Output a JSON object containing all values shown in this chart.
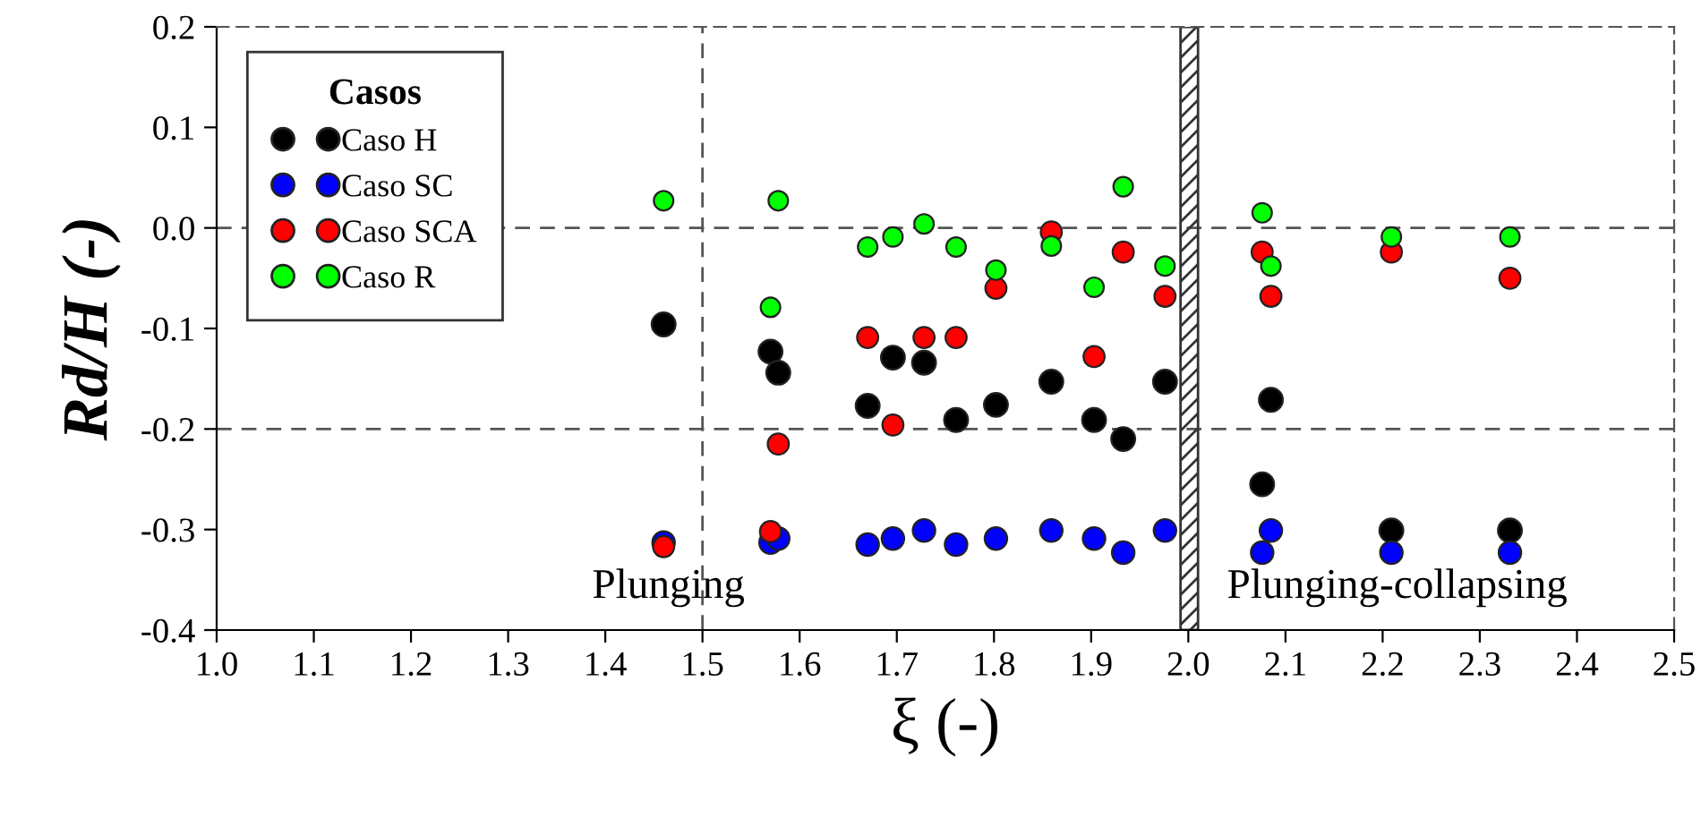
{
  "chart_data": {
    "type": "scatter",
    "xlabel": "ξ (-)",
    "ylabel": "Rd/H (-)",
    "legend_title": "Casos",
    "legend": "top left",
    "marker": "circle",
    "xlim": [
      1.0,
      2.5
    ],
    "ylim": [
      -0.4,
      0.2
    ],
    "xticks": [
      {
        "value": 1.0,
        "label": "1.0"
      },
      {
        "value": 1.1,
        "label": "1.1"
      },
      {
        "value": 1.2,
        "label": "1.2"
      },
      {
        "value": 1.3,
        "label": "1.3"
      },
      {
        "value": 1.4,
        "label": "1.4"
      },
      {
        "value": 1.5,
        "label": "1.5"
      },
      {
        "value": 1.6,
        "label": "1.6"
      },
      {
        "value": 1.7,
        "label": "1.7"
      },
      {
        "value": 1.8,
        "label": "1.8"
      },
      {
        "value": 1.9,
        "label": "1.9"
      },
      {
        "value": 2.0,
        "label": "2.0"
      },
      {
        "value": 2.1,
        "label": "2.1"
      },
      {
        "value": 2.2,
        "label": "2.2"
      },
      {
        "value": 2.3,
        "label": "2.3"
      },
      {
        "value": 2.4,
        "label": "2.4"
      },
      {
        "value": 2.5,
        "label": "2.5"
      }
    ],
    "yticks": [
      {
        "value": -0.4,
        "label": "-0.4"
      },
      {
        "value": -0.3,
        "label": "-0.3"
      },
      {
        "value": -0.2,
        "label": "-0.2"
      },
      {
        "value": -0.1,
        "label": "-0.1"
      },
      {
        "value": 0.0,
        "label": "0.0"
      },
      {
        "value": 0.1,
        "label": "0.1"
      },
      {
        "value": 0.2,
        "label": "0.2"
      }
    ],
    "x": [
      1.46,
      1.57,
      1.578,
      1.67,
      1.696,
      1.728,
      1.761,
      1.802,
      1.859,
      1.903,
      1.933,
      1.976,
      2.076,
      2.085,
      2.209,
      2.331
    ],
    "series": [
      {
        "name": "Caso H",
        "color": "#000000",
        "values": [
          -0.096,
          -0.123,
          -0.144,
          -0.177,
          -0.129,
          -0.134,
          -0.191,
          -0.176,
          -0.153,
          -0.191,
          -0.21,
          -0.153,
          -0.255,
          -0.171,
          -0.301,
          -0.301
        ]
      },
      {
        "name": "Caso SC",
        "color": "#0000ff",
        "values": [
          -0.313,
          -0.313,
          -0.309,
          -0.315,
          -0.309,
          -0.301,
          -0.315,
          -0.309,
          -0.301,
          -0.309,
          -0.323,
          -0.301,
          -0.323,
          -0.301,
          -0.323,
          -0.323
        ]
      },
      {
        "name": "Caso SCA",
        "color": "#ff0000",
        "values": [
          -0.317,
          -0.302,
          -0.215,
          -0.109,
          -0.196,
          -0.109,
          -0.109,
          -0.06,
          -0.004,
          -0.128,
          -0.024,
          -0.068,
          -0.024,
          -0.068,
          -0.024,
          -0.05
        ]
      },
      {
        "name": "Caso R",
        "color": "#00ff00",
        "values": [
          0.027,
          -0.079,
          0.027,
          -0.019,
          -0.009,
          0.004,
          -0.019,
          -0.042,
          -0.018,
          -0.059,
          0.041,
          -0.038,
          0.015,
          -0.038,
          -0.009,
          -0.009
        ]
      }
    ],
    "ref_lines": [
      {
        "axis": "x",
        "value": 1.5,
        "line_style": "dashed",
        "color": "#555555"
      },
      {
        "axis": "y",
        "value": 0.0,
        "line_style": "dashed",
        "color": "#555555"
      },
      {
        "axis": "y",
        "value": -0.2,
        "line_style": "dashed",
        "color": "#555555"
      }
    ],
    "bands": [
      {
        "axis": "x",
        "from": 1.992,
        "to": 2.01,
        "color": "#333333"
      }
    ],
    "annotations": [
      "Plunging",
      "Plunging-collapsing"
    ]
  }
}
